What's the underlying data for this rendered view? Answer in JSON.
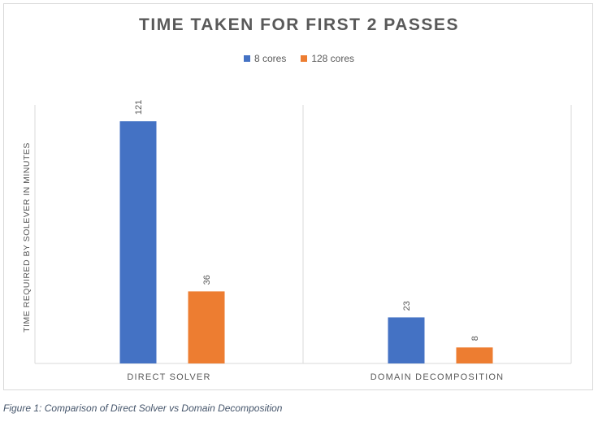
{
  "chart_data": {
    "type": "bar",
    "title": "TIME TAKEN FOR FIRST 2 PASSES",
    "categories": [
      "DIRECT SOLVER",
      "DOMAIN DECOMPOSITION"
    ],
    "series": [
      {
        "name": "8 cores",
        "values": [
          121,
          23
        ],
        "color": "#4472c4"
      },
      {
        "name": "128 cores",
        "values": [
          36,
          8
        ],
        "color": "#ed7d31"
      }
    ],
    "xlabel": "",
    "ylabel": "TIME REQUIRED BY SOLEVER IN MINUTES",
    "ylim": [
      0,
      130
    ],
    "legend_position": "top-center",
    "grid": false
  },
  "caption": "Figure 1: Comparison of Direct Solver vs Domain Decomposition"
}
